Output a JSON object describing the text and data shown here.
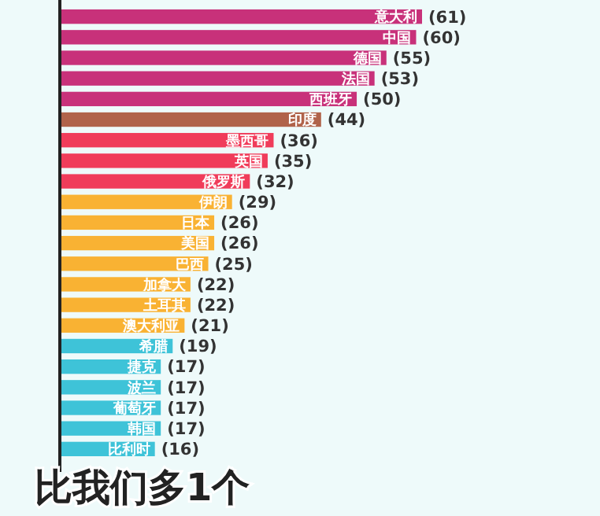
{
  "chart_data": {
    "type": "bar",
    "orientation": "horizontal",
    "relative": false,
    "value_labels": [
      "(61)",
      "(60)",
      "(55)",
      "(53)",
      "(50)",
      "(44)",
      "(36)",
      "(35)",
      "(32)",
      "(29)",
      "(26)",
      "(26)",
      "(25)",
      "(22)",
      "(22)",
      "(21)",
      "(19)",
      "(17)",
      "(17)",
      "(17)",
      "(17)",
      "(16)"
    ],
    "categories": [
      "意大利",
      "中国",
      "德国",
      "法国",
      "西班牙",
      "印度",
      "墨西哥",
      "英国",
      "俄罗斯",
      "伊朗",
      "日本",
      "美国",
      "巴西",
      "加拿大",
      "土耳其",
      "澳大利亚",
      "希腊",
      "捷克",
      "波兰",
      "葡萄牙",
      "韩国",
      "比利时"
    ],
    "values": [
      61,
      60,
      55,
      53,
      50,
      44,
      36,
      35,
      32,
      29,
      26,
      26,
      25,
      22,
      22,
      21,
      19,
      17,
      17,
      17,
      17,
      16
    ],
    "colors": [
      "#c8317a",
      "#c8317a",
      "#c8317a",
      "#c8317a",
      "#c8317a",
      "#b0634a",
      "#f03c5a",
      "#f03c5a",
      "#f03c5a",
      "#f9b233",
      "#f9b233",
      "#f9b233",
      "#f9b233",
      "#f9b233",
      "#f9b233",
      "#f9b233",
      "#3ec3d8",
      "#3ec3d8",
      "#3ec3d8",
      "#3ec3d8",
      "#3ec3d8",
      "#3ec3d8"
    ],
    "annotations": [
      "比我们多1个"
    ]
  }
}
